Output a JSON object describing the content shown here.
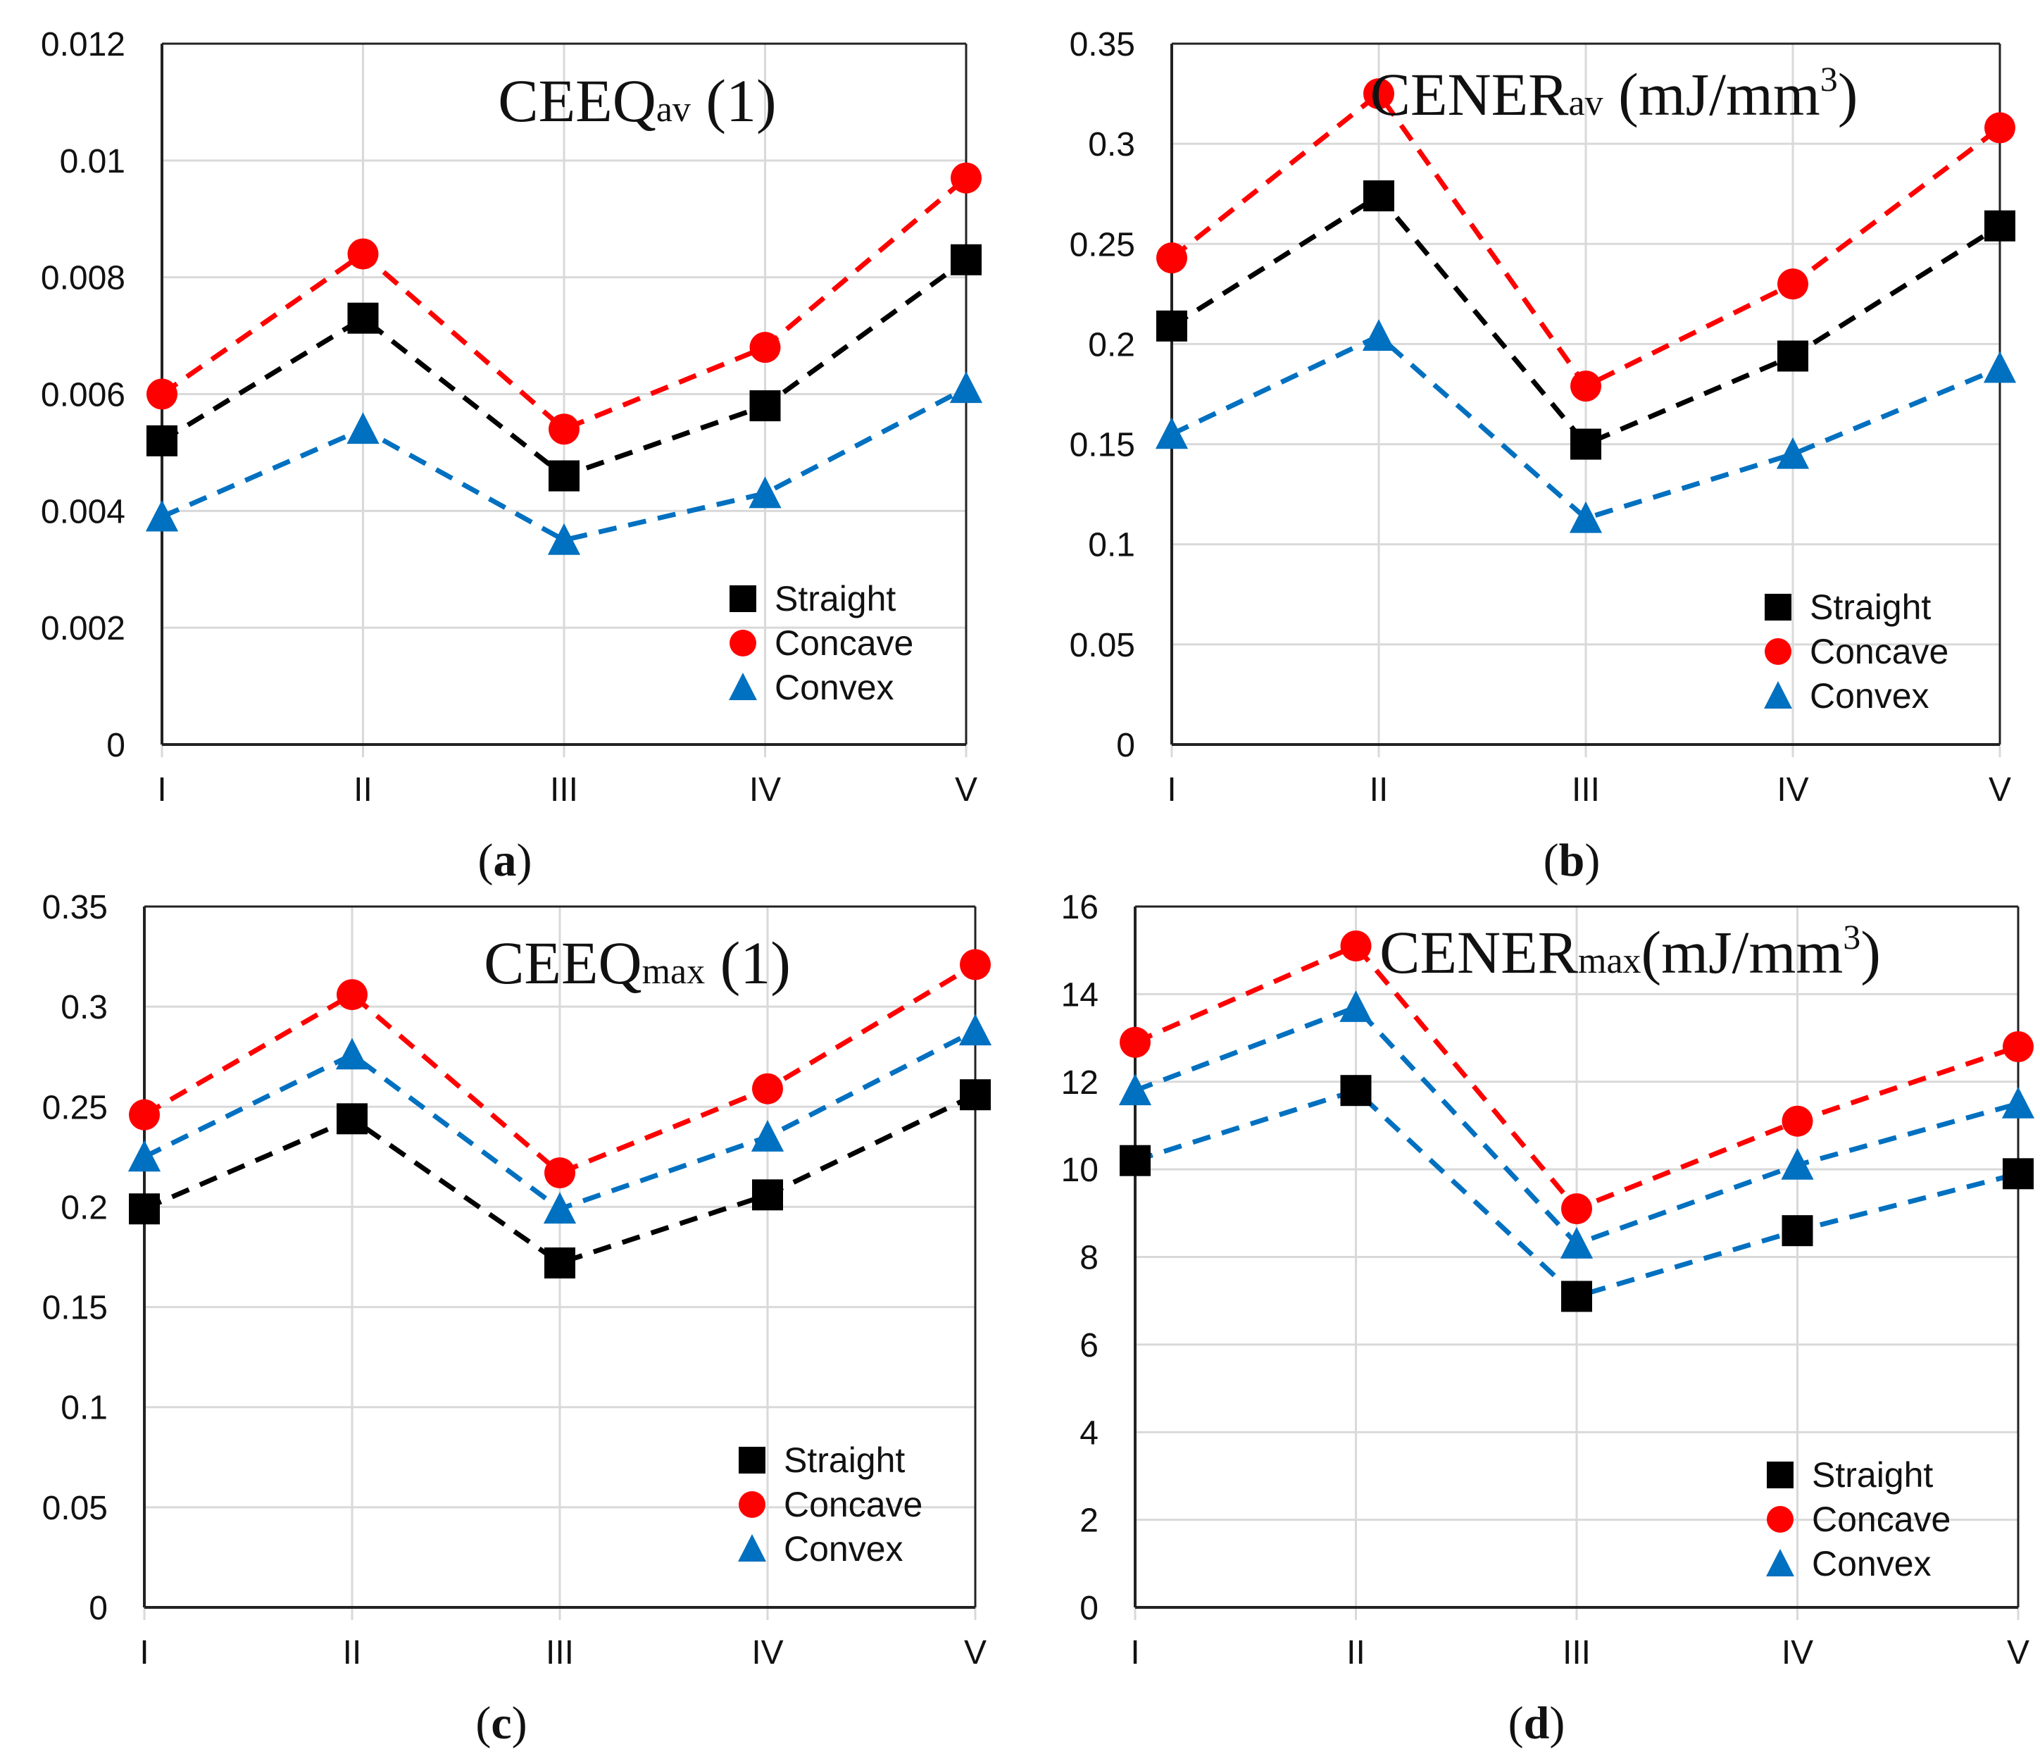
{
  "chart_data": [
    {
      "id": "a",
      "type": "line",
      "caption_letter": "a",
      "title_main": "CEEQ",
      "title_sub": "av",
      "title_tail": " (1)",
      "categories": [
        "I",
        "II",
        "III",
        "IV",
        "V"
      ],
      "ylim": [
        0,
        0.012
      ],
      "yticks": [
        "0",
        "0.002",
        "0.004",
        "0.006",
        "0.008",
        "0.01",
        "0.012"
      ],
      "grid": true,
      "legend_position": "bottom-right",
      "series": [
        {
          "name": "Straight",
          "marker": "square",
          "color": "#000000",
          "values": [
            0.0052,
            0.0073,
            0.0046,
            0.0058,
            0.0083
          ]
        },
        {
          "name": "Concave",
          "marker": "circle",
          "color": "#ff0000",
          "values": [
            0.006,
            0.0084,
            0.0054,
            0.0068,
            0.0097
          ]
        },
        {
          "name": "Convex",
          "marker": "triangle",
          "color": "#0070c0",
          "values": [
            0.0039,
            0.0054,
            0.0035,
            0.0043,
            0.0061
          ]
        }
      ]
    },
    {
      "id": "b",
      "type": "line",
      "caption_letter": "b",
      "title_main": "CENER",
      "title_sub": "av",
      "title_tail": " (mJ/mm",
      "title_sup": "3",
      "title_end": ")",
      "categories": [
        "I",
        "II",
        "III",
        "IV",
        "V"
      ],
      "ylim": [
        0,
        0.35
      ],
      "yticks": [
        "0",
        "0.05",
        "0.1",
        "0.15",
        "0.2",
        "0.25",
        "0.3",
        "0.35"
      ],
      "grid": true,
      "legend_position": "bottom-right",
      "series": [
        {
          "name": "Straight",
          "marker": "square",
          "color": "#000000",
          "values": [
            0.209,
            0.274,
            0.15,
            0.194,
            0.259
          ]
        },
        {
          "name": "Concave",
          "marker": "circle",
          "color": "#ff0000",
          "values": [
            0.243,
            0.325,
            0.179,
            0.23,
            0.308
          ]
        },
        {
          "name": "Convex",
          "marker": "triangle",
          "color": "#0070c0",
          "values": [
            0.155,
            0.204,
            0.113,
            0.145,
            0.188
          ]
        }
      ]
    },
    {
      "id": "c",
      "type": "line",
      "caption_letter": "c",
      "title_main": "CEEQ",
      "title_sub": "max",
      "title_tail": " (1)",
      "categories": [
        "I",
        "II",
        "III",
        "IV",
        "V"
      ],
      "ylim": [
        0,
        0.35
      ],
      "yticks": [
        "0",
        "0.05",
        "0.1",
        "0.15",
        "0.2",
        "0.25",
        "0.3",
        "0.35"
      ],
      "grid": true,
      "legend_position": "bottom-right",
      "series": [
        {
          "name": "Straight",
          "marker": "square",
          "color": "#000000",
          "values": [
            0.199,
            0.244,
            0.172,
            0.206,
            0.256
          ]
        },
        {
          "name": "Concave",
          "marker": "circle",
          "color": "#ff0000",
          "values": [
            0.246,
            0.306,
            0.217,
            0.259,
            0.321
          ]
        },
        {
          "name": "Convex",
          "marker": "triangle",
          "color": "#0070c0",
          "values": [
            0.225,
            0.276,
            0.199,
            0.235,
            0.288
          ]
        }
      ]
    },
    {
      "id": "d",
      "type": "line",
      "caption_letter": "d",
      "title_main": "CENER",
      "title_sub": "max",
      "title_tail": "(mJ/mm",
      "title_sup": "3",
      "title_end": ")",
      "categories": [
        "I",
        "II",
        "III",
        "IV",
        "V"
      ],
      "ylim": [
        0,
        16
      ],
      "yticks": [
        "0",
        "2",
        "4",
        "6",
        "8",
        "10",
        "12",
        "14",
        "16"
      ],
      "grid": true,
      "legend_position": "bottom-right",
      "series": [
        {
          "name": "Straight",
          "marker": "square",
          "color": "#000000",
          "line_color": "#0070c0",
          "values": [
            10.2,
            11.8,
            7.1,
            8.6,
            9.9
          ]
        },
        {
          "name": "Concave",
          "marker": "circle",
          "color": "#ff0000",
          "values": [
            12.9,
            15.1,
            9.1,
            11.1,
            12.8
          ]
        },
        {
          "name": "Convex",
          "marker": "triangle",
          "color": "#0070c0",
          "values": [
            11.8,
            13.7,
            8.3,
            10.1,
            11.5
          ]
        }
      ]
    }
  ]
}
